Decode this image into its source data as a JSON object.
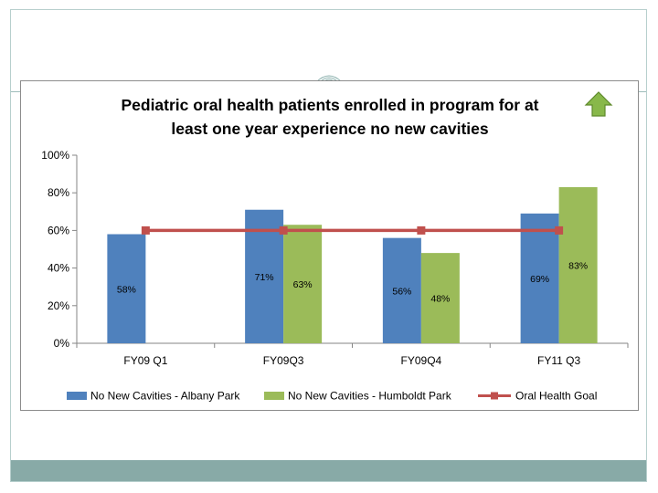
{
  "chart_data": {
    "type": "bar",
    "title_lines": [
      "Pediatric oral health patients enrolled in program for at",
      "least one year experience no new cavities"
    ],
    "categories": [
      "FY09 Q1",
      "FY09Q3",
      "FY09Q4",
      "FY11 Q3"
    ],
    "series": [
      {
        "name": "No New Cavities - Albany Park",
        "type": "bar",
        "values": [
          58,
          71,
          56,
          69
        ],
        "labels": [
          "58%",
          "71%",
          "56%",
          "69%"
        ],
        "color": "#4f81bd"
      },
      {
        "name": "No New Cavities - Humboldt Park",
        "type": "bar",
        "values": [
          null,
          63,
          48,
          83
        ],
        "labels": [
          null,
          "63%",
          "48%",
          "83%"
        ],
        "color": "#9bbb59"
      },
      {
        "name": "Oral Health Goal",
        "type": "line",
        "values": [
          60,
          60,
          60,
          60
        ],
        "color": "#c0504d"
      }
    ],
    "yticks": [
      "0%",
      "20%",
      "40%",
      "60%",
      "80%",
      "100%"
    ],
    "ylim": [
      0,
      100
    ],
    "legend_position": "bottom",
    "trend_indicator": "up-arrow",
    "trend_color": "#77a83a"
  }
}
